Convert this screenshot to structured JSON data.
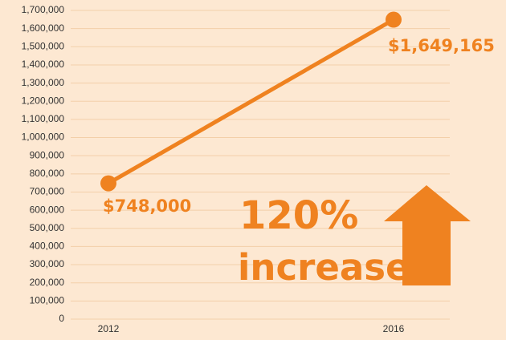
{
  "chart_data": {
    "type": "line",
    "categories": [
      "2012",
      "2016"
    ],
    "values": [
      748000,
      1649165
    ],
    "value_labels": [
      "$748,000",
      "$1,649,165"
    ],
    "color": "#ef8220",
    "ylim": [
      0,
      1700000
    ],
    "yticks": [
      0,
      {
        "value": 100000,
        "label": "100,000"
      },
      {
        "value": 200000,
        "label": "200,000"
      },
      {
        "value": 300000,
        "label": "300,000"
      },
      {
        "value": 400000,
        "label": "400,000"
      },
      {
        "value": 500000,
        "label": "500,000"
      },
      {
        "value": 600000,
        "label": "600,000"
      },
      {
        "value": 700000,
        "label": "700,000"
      },
      {
        "value": 800000,
        "label": "800,000"
      },
      {
        "value": 900000,
        "label": "900,000"
      },
      {
        "value": 1000000,
        "label": "1,000,000"
      },
      {
        "value": 1100000,
        "label": "1,100,000"
      },
      {
        "value": 1200000,
        "label": "1,200,000"
      },
      {
        "value": 1300000,
        "label": "1,300,000"
      },
      {
        "value": 1400000,
        "label": "1,400,000"
      },
      {
        "value": 1500000,
        "label": "1,500,000"
      },
      {
        "value": 1600000,
        "label": "1,600,000"
      },
      {
        "value": 1700000,
        "label": "1,700,000"
      }
    ],
    "grid": true,
    "annotations": [
      "120%",
      "increase"
    ]
  }
}
